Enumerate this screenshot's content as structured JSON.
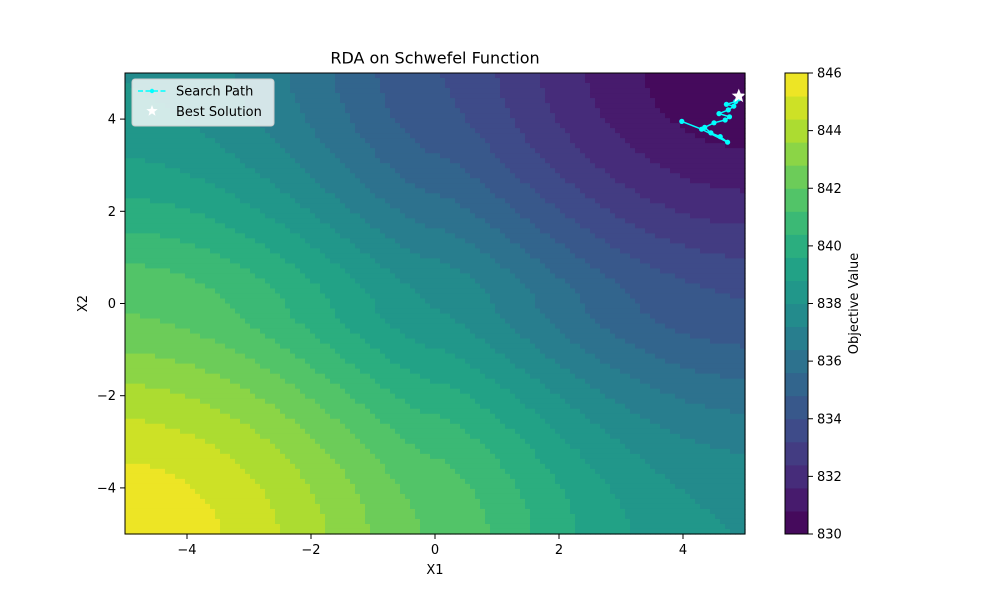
{
  "chart_data": {
    "type": "contour",
    "title": "RDA on Schwefel Function",
    "xlabel": "X1",
    "ylabel": "X2",
    "xlim": [
      -5,
      5
    ],
    "ylim": [
      -5,
      5
    ],
    "x_ticks": [
      -4,
      -2,
      0,
      2,
      4
    ],
    "x_tick_labels": [
      "−4",
      "−2",
      "0",
      "2",
      "4"
    ],
    "y_ticks": [
      -4,
      -2,
      0,
      2,
      4
    ],
    "y_tick_labels": [
      "−4",
      "−2",
      "0",
      "2",
      "4"
    ],
    "grid": false,
    "colormap": "viridis",
    "colorbar": {
      "label": "Objective Value",
      "range": [
        830,
        846
      ],
      "ticks": [
        830,
        832,
        834,
        836,
        838,
        840,
        842,
        844,
        846
      ],
      "tick_labels": [
        "830",
        "832",
        "834",
        "836",
        "838",
        "840",
        "842",
        "844",
        "846"
      ]
    },
    "contour_levels": [
      830,
      830.8,
      831.6,
      832.4,
      833.2,
      834,
      834.8,
      835.6,
      836.4,
      837.2,
      838,
      838.8,
      839.6,
      840.4,
      841.2,
      842,
      842.8,
      843.6,
      844.4,
      845.2,
      846
    ],
    "function": "schwefel",
    "legend": {
      "placement": "upper-left",
      "entries": [
        {
          "label": "Search Path",
          "color": "#00ffff",
          "style": "dashed-line-with-dots"
        },
        {
          "label": "Best Solution",
          "color": "#ffffff",
          "style": "star"
        }
      ]
    },
    "series": [
      {
        "name": "Search Path",
        "color": "#00ffff",
        "points": [
          [
            3.98,
            3.95
          ],
          [
            4.3,
            3.78
          ],
          [
            4.72,
            3.5
          ],
          [
            4.6,
            3.62
          ],
          [
            4.45,
            3.7
          ],
          [
            4.35,
            3.82
          ],
          [
            4.5,
            3.92
          ],
          [
            4.68,
            3.98
          ],
          [
            4.75,
            4.05
          ],
          [
            4.58,
            4.12
          ],
          [
            4.73,
            4.2
          ],
          [
            4.82,
            4.28
          ],
          [
            4.7,
            4.32
          ],
          [
            4.85,
            4.38
          ],
          [
            4.9,
            4.44
          ]
        ]
      }
    ],
    "best_solution": {
      "name": "Best Solution",
      "x": 4.9,
      "y": 4.5,
      "color": "#ffffff"
    }
  }
}
